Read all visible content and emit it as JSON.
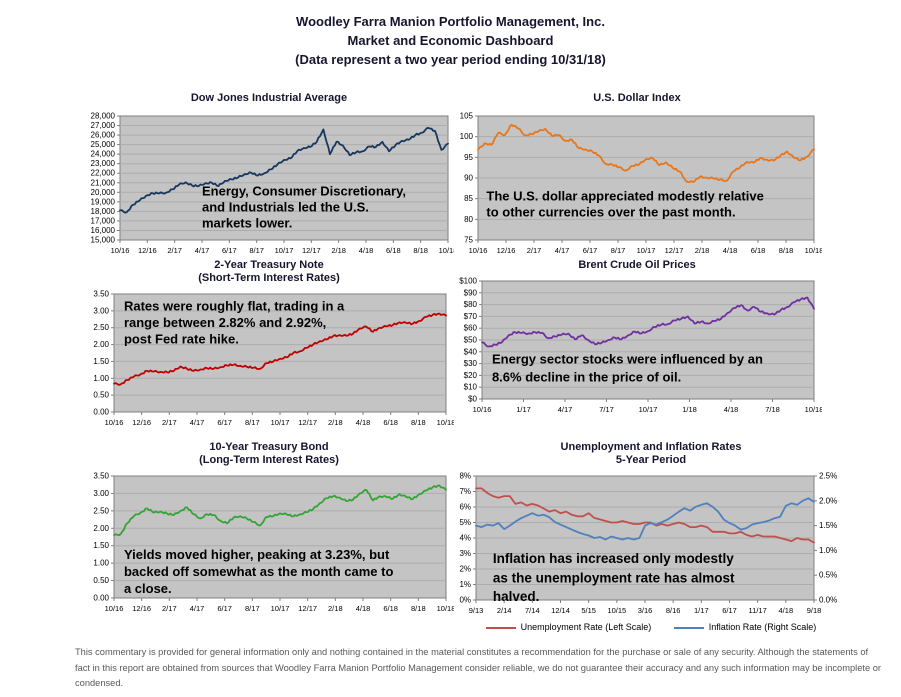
{
  "header": {
    "line1": "Woodley Farra Manion Portfolio Management, Inc.",
    "line2": "Market and Economic Dashboard",
    "line3": "(Data represent a two year period ending 10/31/18)"
  },
  "colors": {
    "plot_bg": "#C4C4C4",
    "gridline": "#ADADAD",
    "axis": "#7F7F7F",
    "annotation_text": "#1A1A1A"
  },
  "chart_data": [
    {
      "type": "line",
      "title": "Dow Jones Industrial Average",
      "x_labels": [
        "10/16",
        "12/16",
        "2/17",
        "4/17",
        "6/17",
        "8/17",
        "10/17",
        "12/17",
        "2/18",
        "4/18",
        "6/18",
        "8/18",
        "10/18"
      ],
      "y_axis": {
        "min": 15000,
        "max": 28000,
        "labels": [
          "28,000",
          "27,000",
          "26,000",
          "25,000",
          "24,000",
          "23,000",
          "22,000",
          "21,000",
          "20,000",
          "19,000",
          "18,000",
          "17,000",
          "16,000",
          "15,000"
        ]
      },
      "annotation": [
        "Energy, Consumer Discretionary,",
        "and Industrials led the U.S.",
        "markets lower."
      ],
      "series": [
        {
          "name": "Dow Jones Industrial Average",
          "color": "#17375E",
          "values": [
            18100,
            17900,
            18700,
            19150,
            19650,
            19900,
            19900,
            19950,
            20300,
            20800,
            21050,
            20700,
            20650,
            20950,
            21000,
            20650,
            21200,
            21350,
            21550,
            21900,
            22050,
            21750,
            22000,
            22400,
            22900,
            23400,
            23550,
            24300,
            24650,
            24750,
            25300,
            26600,
            24000,
            25300,
            24900,
            23900,
            24200,
            24300,
            24800,
            24750,
            25300,
            24300,
            24950,
            25400,
            25500,
            26000,
            26250,
            26750,
            26450,
            24450,
            25100
          ]
        }
      ]
    },
    {
      "type": "line",
      "title": "U.S. Dollar Index",
      "x_labels": [
        "10/16",
        "12/16",
        "2/17",
        "4/17",
        "6/17",
        "8/17",
        "10/17",
        "12/17",
        "2/18",
        "4/18",
        "6/18",
        "8/18",
        "10/18"
      ],
      "y_axis": {
        "min": 75,
        "max": 105,
        "labels": [
          "105",
          "100",
          "95",
          "90",
          "85",
          "80",
          "75"
        ]
      },
      "annotation": [
        "The U.S. dollar appreciated modestly relative",
        "to other currencies over the past month."
      ],
      "series": [
        {
          "name": "U.S. Dollar Index",
          "color": "#E8761B",
          "values": [
            96.8,
            98.4,
            98.0,
            100.9,
            100.4,
            102.9,
            102.0,
            100.3,
            100.6,
            101.3,
            101.9,
            100.2,
            100.4,
            99.0,
            99.2,
            97.2,
            96.9,
            96.4,
            95.4,
            93.4,
            93.2,
            92.6,
            91.8,
            92.9,
            93.3,
            94.6,
            94.8,
            93.1,
            93.8,
            92.4,
            91.6,
            89.2,
            89.0,
            90.3,
            90.1,
            89.9,
            89.6,
            89.3,
            91.6,
            92.6,
            93.9,
            93.7,
            94.8,
            94.4,
            94.2,
            95.4,
            96.4,
            94.9,
            94.3,
            95.2,
            97.0
          ]
        }
      ]
    },
    {
      "type": "line",
      "title": "2-Year Treasury Note",
      "subtitle": "(Short-Term Interest Rates)",
      "x_labels": [
        "10/16",
        "12/16",
        "2/17",
        "4/17",
        "6/17",
        "8/17",
        "10/17",
        "12/17",
        "2/18",
        "4/18",
        "6/18",
        "8/18",
        "10/18"
      ],
      "y_axis": {
        "min": 0,
        "max": 3.5,
        "labels": [
          "3.50",
          "3.00",
          "2.50",
          "2.00",
          "1.50",
          "1.00",
          "0.50",
          "0.00"
        ]
      },
      "annotation": [
        "Rates were roughly flat, trading in a",
        "range between 2.82% and 2.92%,",
        "post Fed rate hike."
      ],
      "series": [
        {
          "name": "2-Year Treasury Note Yield",
          "color": "#C00000",
          "values": [
            0.84,
            0.82,
            0.95,
            1.05,
            1.12,
            1.22,
            1.2,
            1.19,
            1.18,
            1.22,
            1.35,
            1.28,
            1.22,
            1.26,
            1.3,
            1.28,
            1.33,
            1.38,
            1.4,
            1.37,
            1.34,
            1.31,
            1.28,
            1.45,
            1.5,
            1.58,
            1.62,
            1.75,
            1.8,
            1.9,
            2.0,
            2.1,
            2.15,
            2.25,
            2.28,
            2.26,
            2.32,
            2.48,
            2.53,
            2.38,
            2.5,
            2.54,
            2.58,
            2.66,
            2.64,
            2.62,
            2.7,
            2.82,
            2.88,
            2.92,
            2.86
          ]
        }
      ]
    },
    {
      "type": "line",
      "title": "Brent Crude Oil Prices",
      "x_labels": [
        "10/16",
        "1/17",
        "4/17",
        "7/17",
        "10/17",
        "1/18",
        "4/18",
        "7/18",
        "10/18"
      ],
      "y_axis": {
        "min": 0,
        "max": 100,
        "labels": [
          "$100",
          "$90",
          "$80",
          "$70",
          "$60",
          "$50",
          "$40",
          "$30",
          "$20",
          "$10",
          "$0"
        ]
      },
      "annotation": [
        "Energy sector stocks were influenced by an",
        "8.6% decline in the price of oil."
      ],
      "series": [
        {
          "name": "Brent Crude Oil Price",
          "color": "#7030A0",
          "values": [
            48,
            44.5,
            46,
            48,
            54,
            56.5,
            56,
            55.5,
            56.5,
            56,
            51.5,
            53,
            54.5,
            55.5,
            50.5,
            54,
            50,
            46.5,
            47.5,
            50,
            52,
            50.5,
            54,
            57,
            55.5,
            57.5,
            61,
            63,
            63.5,
            66.5,
            68,
            70,
            64,
            65.5,
            64,
            66,
            68,
            73,
            77,
            79.5,
            75,
            78,
            74,
            72.5,
            71.5,
            75.5,
            78,
            82,
            84.5,
            86,
            76.5
          ]
        }
      ]
    },
    {
      "type": "line",
      "title": "10-Year Treasury Bond",
      "subtitle": "(Long-Term Interest Rates)",
      "x_labels": [
        "10/16",
        "12/16",
        "2/17",
        "4/17",
        "6/17",
        "8/17",
        "10/17",
        "12/17",
        "2/18",
        "4/18",
        "6/18",
        "8/18",
        "10/18"
      ],
      "y_axis": {
        "min": 0,
        "max": 3.5,
        "labels": [
          "3.50",
          "3.00",
          "2.50",
          "2.00",
          "1.50",
          "1.00",
          "0.50",
          "0.00"
        ]
      },
      "annotation": [
        "Yields moved higher, peaking at 3.23%, but",
        "backed off somewhat as the month came to",
        "a close."
      ],
      "series": [
        {
          "name": "10-Year Treasury Bond Yield",
          "color": "#36A336",
          "values": [
            1.8,
            1.83,
            2.15,
            2.35,
            2.45,
            2.57,
            2.45,
            2.48,
            2.42,
            2.38,
            2.5,
            2.6,
            2.4,
            2.28,
            2.4,
            2.38,
            2.22,
            2.14,
            2.3,
            2.35,
            2.28,
            2.18,
            2.08,
            2.33,
            2.35,
            2.43,
            2.4,
            2.34,
            2.4,
            2.46,
            2.55,
            2.72,
            2.86,
            2.92,
            2.88,
            2.78,
            2.82,
            3.0,
            3.1,
            2.8,
            2.92,
            2.9,
            2.85,
            2.98,
            2.9,
            2.84,
            2.98,
            3.08,
            3.18,
            3.23,
            3.1
          ]
        }
      ]
    },
    {
      "type": "line",
      "title": "Unemployment and Inflation Rates",
      "subtitle": "5-Year Period",
      "x_labels": [
        "9/13",
        "2/14",
        "7/14",
        "12/14",
        "5/15",
        "10/15",
        "3/16",
        "8/16",
        "1/17",
        "6/17",
        "11/17",
        "4/18",
        "9/18"
      ],
      "y_axis": {
        "min": 0,
        "max": 8,
        "labels": [
          "8%",
          "7%",
          "6%",
          "5%",
          "4%",
          "3%",
          "2%",
          "1%",
          "0%"
        ]
      },
      "y_axis_right": {
        "min": 0,
        "max": 2.5,
        "labels": [
          "2.5%",
          "2.0%",
          "1.5%",
          "1.0%",
          "0.5%",
          "0.0%"
        ]
      },
      "annotation": [
        "Inflation has increased only modestly",
        "as the unemployment rate has almost",
        "halved."
      ],
      "legend": [
        {
          "label": "Unemployment Rate (Left Scale)",
          "color": "#C0504D"
        },
        {
          "label": "Inflation Rate (Right Scale)",
          "color": "#4F81BD"
        }
      ],
      "series": [
        {
          "name": "Unemployment Rate",
          "scale": "left",
          "color": "#C0504D",
          "values": [
            7.2,
            7.2,
            6.9,
            6.7,
            6.6,
            6.7,
            6.7,
            6.2,
            6.3,
            6.1,
            6.2,
            6.1,
            5.9,
            5.7,
            5.8,
            5.6,
            5.7,
            5.5,
            5.4,
            5.4,
            5.6,
            5.3,
            5.2,
            5.1,
            5.0,
            5.0,
            5.1,
            5.0,
            4.9,
            4.9,
            5.0,
            5.0,
            4.8,
            4.9,
            4.8,
            4.9,
            5.0,
            4.9,
            4.7,
            4.7,
            4.8,
            4.7,
            4.4,
            4.4,
            4.4,
            4.3,
            4.3,
            4.4,
            4.2,
            4.1,
            4.2,
            4.1,
            4.1,
            4.1,
            4.0,
            3.9,
            3.8,
            4.0,
            3.9,
            3.9,
            3.7
          ]
        },
        {
          "name": "Inflation Rate",
          "scale": "right",
          "color": "#4F81BD",
          "values": [
            1.5,
            1.47,
            1.52,
            1.5,
            1.55,
            1.43,
            1.5,
            1.58,
            1.65,
            1.7,
            1.75,
            1.7,
            1.72,
            1.67,
            1.57,
            1.52,
            1.47,
            1.42,
            1.37,
            1.33,
            1.3,
            1.25,
            1.27,
            1.22,
            1.28,
            1.25,
            1.22,
            1.25,
            1.22,
            1.25,
            1.5,
            1.55,
            1.52,
            1.57,
            1.62,
            1.7,
            1.78,
            1.85,
            1.8,
            1.88,
            1.92,
            1.95,
            1.88,
            1.78,
            1.62,
            1.55,
            1.5,
            1.42,
            1.45,
            1.52,
            1.55,
            1.57,
            1.6,
            1.65,
            1.68,
            1.9,
            1.95,
            1.92,
            2.0,
            2.05,
            1.98
          ]
        }
      ]
    }
  ],
  "footer": {
    "text": "This commentary is provided for general information only and nothing contained in the material constitutes a recommendation for the purchase or sale of any security. Although the statements of fact in this report are obtained from sources that Woodley Farra Manion Portfolio Management consider reliable, we do not guarantee their accuracy and any such information may be incomplete or condensed."
  }
}
